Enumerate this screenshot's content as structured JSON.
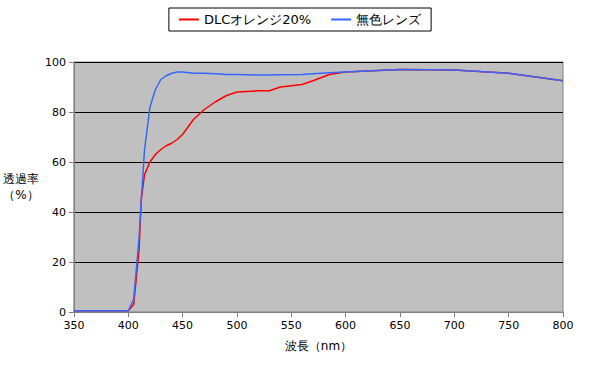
{
  "chart_data": {
    "type": "line",
    "x_label": "波長（nm）",
    "y_label": "透過率\n（%）",
    "x": [
      350,
      375,
      400,
      405,
      410,
      412,
      415,
      420,
      425,
      430,
      435,
      440,
      445,
      450,
      460,
      470,
      480,
      490,
      500,
      520,
      530,
      540,
      560,
      570,
      585,
      600,
      650,
      700,
      750,
      800
    ],
    "series": [
      {
        "name": "DLCオレンジ20%",
        "color": "#ff0000",
        "values": [
          0.5,
          0.5,
          0.5,
          3,
          25,
          45,
          55,
          60,
          63,
          65,
          66.5,
          67.5,
          69,
          71,
          77,
          81,
          84,
          86.5,
          88,
          88.5,
          88.5,
          90,
          91,
          92.5,
          95,
          96,
          97,
          96.8,
          95.5,
          92.5
        ]
      },
      {
        "name": "無色レンズ",
        "color": "#3366ff",
        "values": [
          0.5,
          0.5,
          0.5,
          5,
          30,
          45,
          65,
          82,
          89,
          93,
          94.5,
          95.5,
          96,
          96,
          95.5,
          95.5,
          95.3,
          95,
          95,
          94.8,
          94.8,
          94.9,
          95,
          95.3,
          95.7,
          96,
          97,
          96.8,
          95.5,
          92.5
        ]
      }
    ],
    "xlim": [
      350,
      800
    ],
    "xticks": [
      350,
      400,
      450,
      500,
      550,
      600,
      650,
      700,
      750,
      800
    ],
    "ylim": [
      0,
      100
    ],
    "yticks": [
      0,
      20,
      40,
      60,
      80,
      100
    ],
    "grid": true,
    "legend": "top"
  }
}
